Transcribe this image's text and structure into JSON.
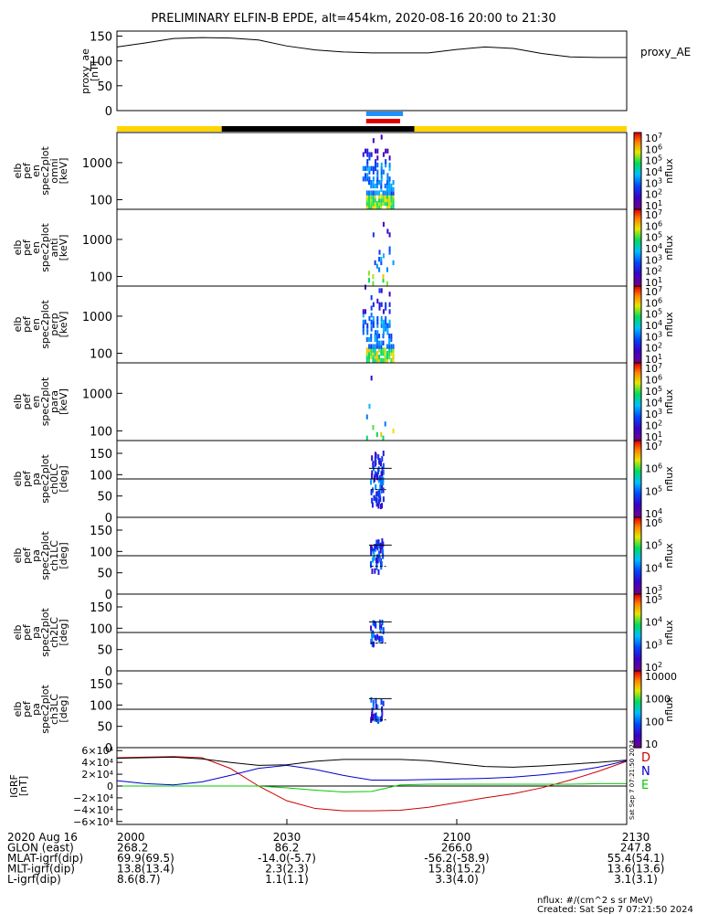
{
  "title": "PRELIMINARY ELFIN-B EPDE, alt=454km, 2020-08-16 20:00 to 21:30",
  "chart_data": [
    {
      "type": "line",
      "panel": "proxy_ae",
      "ylabel_lines": [
        "proxy_ae",
        "[nT]"
      ],
      "legend": "proxy_AE",
      "ylim": [
        0,
        160
      ],
      "y_ticks": [
        "150",
        "100",
        "50",
        "0"
      ],
      "y_tick_values": [
        150,
        100,
        50,
        0
      ],
      "x_minutes": [
        0,
        5,
        10,
        15,
        20,
        25,
        30,
        35,
        40,
        45,
        50,
        55,
        60,
        65,
        70,
        75,
        80,
        85,
        90
      ],
      "values": [
        128,
        136,
        145,
        147,
        146,
        142,
        130,
        122,
        118,
        116,
        116,
        116,
        123,
        128,
        125,
        115,
        108,
        107,
        107
      ]
    },
    {
      "type": "bar",
      "panel": "orbit_bars",
      "bars": [
        {
          "color": "#1e90ff",
          "start_min": 44.0,
          "end_min": 50.5
        },
        {
          "color": "#e00000",
          "start_min": 44.0,
          "end_min": 50.0
        },
        {
          "color": "#ffd400",
          "start_min": 0,
          "end_min": 18.5
        },
        {
          "color": "#000000",
          "start_min": 18.5,
          "end_min": 52.5
        },
        {
          "color": "#ffd400",
          "start_min": 52.5,
          "end_min": 90
        }
      ]
    },
    {
      "type": "heatmap",
      "panel": "spectrogram_energy",
      "scale": "log",
      "y_ticks": [
        "1000",
        "100"
      ],
      "y_tick_values": [
        1000,
        100
      ],
      "ylim": [
        55,
        6500
      ],
      "colorbar_label": "nflux",
      "colorbar_ticks": [
        "10^7",
        "10^6",
        "10^5",
        "10^4",
        "10^3",
        "10^2",
        "10^1"
      ],
      "sub_panels": [
        {
          "ylabel_lines": [
            "elb",
            "pef",
            "en",
            "spec2plot",
            "omni",
            "[keV]"
          ],
          "intensity": 1.0
        },
        {
          "ylabel_lines": [
            "elb",
            "pef",
            "en",
            "spec2plot",
            "anti",
            "[keV]"
          ],
          "intensity": 0.15
        },
        {
          "ylabel_lines": [
            "elb",
            "pef",
            "en",
            "spec2plot",
            "perp",
            "[keV]"
          ],
          "intensity": 0.9
        },
        {
          "ylabel_lines": [
            "elb",
            "pef",
            "en",
            "spec2plot",
            "para",
            "[keV]"
          ],
          "intensity": 0.04
        }
      ],
      "active_interval_min": [
        44.0,
        49.0
      ]
    },
    {
      "type": "heatmap",
      "panel": "spectrogram_pitch_angle",
      "y_ticks": [
        "150",
        "100",
        "50",
        "0"
      ],
      "y_tick_values": [
        150,
        100,
        50,
        0
      ],
      "ylim": [
        0,
        180
      ],
      "reference_line": 90,
      "colorbar_label": "nflux",
      "sub_panels": [
        {
          "ylabel_lines": [
            "elb",
            "pef",
            "pa",
            "spec2plot",
            "ch0LC",
            "[deg]"
          ],
          "colorbar_ticks": [
            "10^7",
            "10^6",
            "10^5",
            "10^4"
          ]
        },
        {
          "ylabel_lines": [
            "elb",
            "pef",
            "pa",
            "spec2plot",
            "ch1LC",
            "[deg]"
          ],
          "colorbar_ticks": [
            "10^6",
            "10^5",
            "10^4",
            "10^3"
          ]
        },
        {
          "ylabel_lines": [
            "elb",
            "pef",
            "pa",
            "spec2plot",
            "ch2LC",
            "[deg]"
          ],
          "colorbar_ticks": [
            "10^5",
            "10^4",
            "10^3",
            "10^2"
          ]
        },
        {
          "ylabel_lines": [
            "elb",
            "pef",
            "pa",
            "spec2plot",
            "ch3LC",
            "[deg]"
          ],
          "colorbar_ticks": [
            "10000",
            "1000",
            "100",
            "10"
          ]
        }
      ]
    },
    {
      "type": "line",
      "panel": "igrf",
      "ylabel_lines": [
        "IGRF",
        "[nT]"
      ],
      "ylim": [
        -65000,
        65000
      ],
      "y_ticks": [
        "6×10⁴",
        "4×10⁴",
        "2×10⁴",
        "0",
        "−2×10⁴",
        "−4×10⁴",
        "−6×10⁴"
      ],
      "y_tick_values": [
        60000,
        40000,
        20000,
        0,
        -20000,
        -40000,
        -60000
      ],
      "x_minutes": [
        0,
        5,
        10,
        15,
        20,
        25,
        30,
        35,
        40,
        45,
        50,
        55,
        60,
        65,
        70,
        75,
        80,
        85,
        90
      ],
      "series": [
        {
          "name": "D",
          "color": "#cc0000",
          "values": [
            48000,
            49000,
            50000,
            48000,
            30000,
            0,
            -25000,
            -38000,
            -42000,
            -42000,
            -41000,
            -36000,
            -28000,
            -20000,
            -13000,
            -3000,
            10000,
            25000,
            42000
          ]
        },
        {
          "name": "N",
          "color": "#0000cc",
          "values": [
            9000,
            4000,
            2000,
            7000,
            18000,
            30000,
            35000,
            28000,
            18000,
            10000,
            10000,
            11000,
            12000,
            13000,
            15000,
            19000,
            24000,
            32000,
            43000
          ]
        },
        {
          "name": "E",
          "color": "#00cc00",
          "values": [
            0,
            0,
            0,
            0,
            0,
            0,
            -3000,
            -7000,
            -10000,
            -9000,
            2000,
            3000,
            3000,
            3000,
            3000,
            3000,
            3000,
            4000,
            4000
          ]
        },
        {
          "name": "",
          "color": "#000000",
          "values": [
            47000,
            48000,
            49000,
            46000,
            40000,
            35000,
            36000,
            42000,
            45000,
            45000,
            45000,
            43000,
            38000,
            33000,
            32000,
            34000,
            37000,
            40000,
            44000
          ]
        }
      ]
    }
  ],
  "x_axis": {
    "row_labels": [
      "2020 Aug 16",
      "GLON (east)",
      "MLAT-igrf(dip)",
      "MLT-igrf(dip)",
      "L-igrf(dip)"
    ],
    "tick_minutes": [
      0,
      30,
      60,
      90
    ],
    "columns": [
      [
        "2000",
        "268.2",
        "69.9(69.5)",
        "13.8(13.4)",
        "8.6(8.7)"
      ],
      [
        "2030",
        "86.2",
        "-14.0(-5.7)",
        "2.3(2.3)",
        "1.1(1.1)"
      ],
      [
        "2100",
        "266.0",
        "-56.2(-58.9)",
        "15.8(15.2)",
        "3.3(4.0)"
      ],
      [
        "2130",
        "247.8",
        "55.4(54.1)",
        "13.6(13.6)",
        "3.1(3.1)"
      ]
    ]
  },
  "footer": {
    "units": "nflux: #/(cm^2 s sr MeV)",
    "created": "Created: Sat Sep  7 07:21:50 2024",
    "side_stamp": "Sat Sep  7 07:21:50 2024"
  }
}
